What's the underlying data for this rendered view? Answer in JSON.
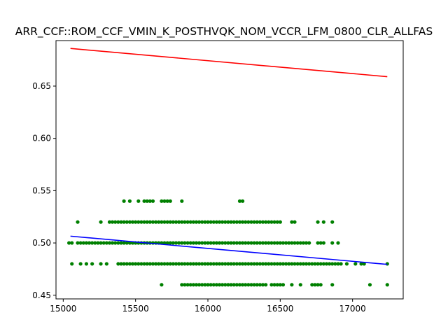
{
  "chart_data": {
    "type": "scatter",
    "title": "ARR_CCF::ROM_CCF_VMIN_K_POSTHVQK_NOM_VCCR_LFM_0800_CLR_ALLFAS",
    "xlabel": "",
    "ylabel": "",
    "xlim": [
      14950,
      17350
    ],
    "ylim": [
      0.4465,
      0.6935
    ],
    "xticks": [
      15000,
      15500,
      16000,
      16500,
      17000
    ],
    "xtick_labels": [
      "15000",
      "15500",
      "16000",
      "16500",
      "17000"
    ],
    "yticks": [
      0.45,
      0.5,
      0.55,
      0.6,
      0.65
    ],
    "ytick_labels": [
      "0.45",
      "0.50",
      "0.55",
      "0.60",
      "0.65"
    ],
    "grid": false,
    "scatter_color": "#008000",
    "points": [
      [
        15420,
        0.54
      ],
      [
        15460,
        0.54
      ],
      [
        15520,
        0.54
      ],
      [
        15560,
        0.54
      ],
      [
        15580,
        0.54
      ],
      [
        15600,
        0.54
      ],
      [
        15620,
        0.54
      ],
      [
        15680,
        0.54
      ],
      [
        15700,
        0.54
      ],
      [
        15720,
        0.54
      ],
      [
        15740,
        0.54
      ],
      [
        15820,
        0.54
      ],
      [
        16220,
        0.54
      ],
      [
        16240,
        0.54
      ],
      [
        15100,
        0.52
      ],
      [
        15260,
        0.52
      ],
      [
        15320,
        0.52
      ],
      [
        15340,
        0.52
      ],
      [
        15360,
        0.52
      ],
      [
        15380,
        0.52
      ],
      [
        15400,
        0.52
      ],
      [
        15420,
        0.52
      ],
      [
        15440,
        0.52
      ],
      [
        15460,
        0.52
      ],
      [
        15480,
        0.52
      ],
      [
        15500,
        0.52
      ],
      [
        15520,
        0.52
      ],
      [
        15540,
        0.52
      ],
      [
        15560,
        0.52
      ],
      [
        15580,
        0.52
      ],
      [
        15600,
        0.52
      ],
      [
        15620,
        0.52
      ],
      [
        15640,
        0.52
      ],
      [
        15660,
        0.52
      ],
      [
        15680,
        0.52
      ],
      [
        15700,
        0.52
      ],
      [
        15720,
        0.52
      ],
      [
        15740,
        0.52
      ],
      [
        15760,
        0.52
      ],
      [
        15780,
        0.52
      ],
      [
        15800,
        0.52
      ],
      [
        15820,
        0.52
      ],
      [
        15840,
        0.52
      ],
      [
        15860,
        0.52
      ],
      [
        15880,
        0.52
      ],
      [
        15900,
        0.52
      ],
      [
        15920,
        0.52
      ],
      [
        15940,
        0.52
      ],
      [
        15960,
        0.52
      ],
      [
        15980,
        0.52
      ],
      [
        16000,
        0.52
      ],
      [
        16020,
        0.52
      ],
      [
        16040,
        0.52
      ],
      [
        16060,
        0.52
      ],
      [
        16080,
        0.52
      ],
      [
        16100,
        0.52
      ],
      [
        16120,
        0.52
      ],
      [
        16140,
        0.52
      ],
      [
        16160,
        0.52
      ],
      [
        16180,
        0.52
      ],
      [
        16200,
        0.52
      ],
      [
        16220,
        0.52
      ],
      [
        16240,
        0.52
      ],
      [
        16260,
        0.52
      ],
      [
        16280,
        0.52
      ],
      [
        16300,
        0.52
      ],
      [
        16320,
        0.52
      ],
      [
        16340,
        0.52
      ],
      [
        16360,
        0.52
      ],
      [
        16380,
        0.52
      ],
      [
        16400,
        0.52
      ],
      [
        16420,
        0.52
      ],
      [
        16440,
        0.52
      ],
      [
        16460,
        0.52
      ],
      [
        16480,
        0.52
      ],
      [
        16500,
        0.52
      ],
      [
        16580,
        0.52
      ],
      [
        16600,
        0.52
      ],
      [
        16760,
        0.52
      ],
      [
        16800,
        0.52
      ],
      [
        16860,
        0.52
      ],
      [
        15040,
        0.5
      ],
      [
        15060,
        0.5
      ],
      [
        15100,
        0.5
      ],
      [
        15120,
        0.5
      ],
      [
        15140,
        0.5
      ],
      [
        15160,
        0.5
      ],
      [
        15180,
        0.5
      ],
      [
        15200,
        0.5
      ],
      [
        15220,
        0.5
      ],
      [
        15240,
        0.5
      ],
      [
        15260,
        0.5
      ],
      [
        15280,
        0.5
      ],
      [
        15300,
        0.5
      ],
      [
        15320,
        0.5
      ],
      [
        15340,
        0.5
      ],
      [
        15360,
        0.5
      ],
      [
        15380,
        0.5
      ],
      [
        15400,
        0.5
      ],
      [
        15420,
        0.5
      ],
      [
        15440,
        0.5
      ],
      [
        15460,
        0.5
      ],
      [
        15480,
        0.5
      ],
      [
        15500,
        0.5
      ],
      [
        15520,
        0.5
      ],
      [
        15540,
        0.5
      ],
      [
        15560,
        0.5
      ],
      [
        15580,
        0.5
      ],
      [
        15600,
        0.5
      ],
      [
        15620,
        0.5
      ],
      [
        15640,
        0.5
      ],
      [
        15660,
        0.5
      ],
      [
        15680,
        0.5
      ],
      [
        15700,
        0.5
      ],
      [
        15720,
        0.5
      ],
      [
        15740,
        0.5
      ],
      [
        15760,
        0.5
      ],
      [
        15780,
        0.5
      ],
      [
        15800,
        0.5
      ],
      [
        15820,
        0.5
      ],
      [
        15840,
        0.5
      ],
      [
        15860,
        0.5
      ],
      [
        15880,
        0.5
      ],
      [
        15900,
        0.5
      ],
      [
        15920,
        0.5
      ],
      [
        15940,
        0.5
      ],
      [
        15960,
        0.5
      ],
      [
        15980,
        0.5
      ],
      [
        16000,
        0.5
      ],
      [
        16020,
        0.5
      ],
      [
        16040,
        0.5
      ],
      [
        16060,
        0.5
      ],
      [
        16080,
        0.5
      ],
      [
        16100,
        0.5
      ],
      [
        16120,
        0.5
      ],
      [
        16140,
        0.5
      ],
      [
        16160,
        0.5
      ],
      [
        16180,
        0.5
      ],
      [
        16200,
        0.5
      ],
      [
        16220,
        0.5
      ],
      [
        16240,
        0.5
      ],
      [
        16260,
        0.5
      ],
      [
        16280,
        0.5
      ],
      [
        16300,
        0.5
      ],
      [
        16320,
        0.5
      ],
      [
        16340,
        0.5
      ],
      [
        16360,
        0.5
      ],
      [
        16380,
        0.5
      ],
      [
        16400,
        0.5
      ],
      [
        16420,
        0.5
      ],
      [
        16440,
        0.5
      ],
      [
        16460,
        0.5
      ],
      [
        16480,
        0.5
      ],
      [
        16500,
        0.5
      ],
      [
        16520,
        0.5
      ],
      [
        16540,
        0.5
      ],
      [
        16560,
        0.5
      ],
      [
        16580,
        0.5
      ],
      [
        16600,
        0.5
      ],
      [
        16620,
        0.5
      ],
      [
        16640,
        0.5
      ],
      [
        16660,
        0.5
      ],
      [
        16680,
        0.5
      ],
      [
        16700,
        0.5
      ],
      [
        16760,
        0.5
      ],
      [
        16780,
        0.5
      ],
      [
        16800,
        0.5
      ],
      [
        16860,
        0.5
      ],
      [
        16900,
        0.5
      ],
      [
        15060,
        0.48
      ],
      [
        15120,
        0.48
      ],
      [
        15160,
        0.48
      ],
      [
        15200,
        0.48
      ],
      [
        15260,
        0.48
      ],
      [
        15300,
        0.48
      ],
      [
        15380,
        0.48
      ],
      [
        15400,
        0.48
      ],
      [
        15420,
        0.48
      ],
      [
        15440,
        0.48
      ],
      [
        15460,
        0.48
      ],
      [
        15480,
        0.48
      ],
      [
        15500,
        0.48
      ],
      [
        15520,
        0.48
      ],
      [
        15540,
        0.48
      ],
      [
        15560,
        0.48
      ],
      [
        15580,
        0.48
      ],
      [
        15600,
        0.48
      ],
      [
        15620,
        0.48
      ],
      [
        15640,
        0.48
      ],
      [
        15660,
        0.48
      ],
      [
        15680,
        0.48
      ],
      [
        15700,
        0.48
      ],
      [
        15720,
        0.48
      ],
      [
        15740,
        0.48
      ],
      [
        15760,
        0.48
      ],
      [
        15780,
        0.48
      ],
      [
        15800,
        0.48
      ],
      [
        15820,
        0.48
      ],
      [
        15840,
        0.48
      ],
      [
        15860,
        0.48
      ],
      [
        15880,
        0.48
      ],
      [
        15900,
        0.48
      ],
      [
        15920,
        0.48
      ],
      [
        15940,
        0.48
      ],
      [
        15960,
        0.48
      ],
      [
        15980,
        0.48
      ],
      [
        16000,
        0.48
      ],
      [
        16020,
        0.48
      ],
      [
        16040,
        0.48
      ],
      [
        16060,
        0.48
      ],
      [
        16080,
        0.48
      ],
      [
        16100,
        0.48
      ],
      [
        16120,
        0.48
      ],
      [
        16140,
        0.48
      ],
      [
        16160,
        0.48
      ],
      [
        16180,
        0.48
      ],
      [
        16200,
        0.48
      ],
      [
        16220,
        0.48
      ],
      [
        16240,
        0.48
      ],
      [
        16260,
        0.48
      ],
      [
        16280,
        0.48
      ],
      [
        16300,
        0.48
      ],
      [
        16320,
        0.48
      ],
      [
        16340,
        0.48
      ],
      [
        16360,
        0.48
      ],
      [
        16380,
        0.48
      ],
      [
        16400,
        0.48
      ],
      [
        16420,
        0.48
      ],
      [
        16440,
        0.48
      ],
      [
        16460,
        0.48
      ],
      [
        16480,
        0.48
      ],
      [
        16500,
        0.48
      ],
      [
        16520,
        0.48
      ],
      [
        16540,
        0.48
      ],
      [
        16560,
        0.48
      ],
      [
        16580,
        0.48
      ],
      [
        16600,
        0.48
      ],
      [
        16620,
        0.48
      ],
      [
        16640,
        0.48
      ],
      [
        16660,
        0.48
      ],
      [
        16680,
        0.48
      ],
      [
        16700,
        0.48
      ],
      [
        16720,
        0.48
      ],
      [
        16740,
        0.48
      ],
      [
        16760,
        0.48
      ],
      [
        16780,
        0.48
      ],
      [
        16800,
        0.48
      ],
      [
        16820,
        0.48
      ],
      [
        16840,
        0.48
      ],
      [
        16860,
        0.48
      ],
      [
        16880,
        0.48
      ],
      [
        16900,
        0.48
      ],
      [
        16920,
        0.48
      ],
      [
        16960,
        0.48
      ],
      [
        17020,
        0.48
      ],
      [
        17060,
        0.48
      ],
      [
        17080,
        0.48
      ],
      [
        17240,
        0.48
      ],
      [
        15680,
        0.46
      ],
      [
        15820,
        0.46
      ],
      [
        15840,
        0.46
      ],
      [
        15860,
        0.46
      ],
      [
        15880,
        0.46
      ],
      [
        15900,
        0.46
      ],
      [
        15920,
        0.46
      ],
      [
        15940,
        0.46
      ],
      [
        15960,
        0.46
      ],
      [
        15980,
        0.46
      ],
      [
        16000,
        0.46
      ],
      [
        16020,
        0.46
      ],
      [
        16040,
        0.46
      ],
      [
        16060,
        0.46
      ],
      [
        16080,
        0.46
      ],
      [
        16100,
        0.46
      ],
      [
        16120,
        0.46
      ],
      [
        16140,
        0.46
      ],
      [
        16160,
        0.46
      ],
      [
        16180,
        0.46
      ],
      [
        16200,
        0.46
      ],
      [
        16220,
        0.46
      ],
      [
        16240,
        0.46
      ],
      [
        16260,
        0.46
      ],
      [
        16280,
        0.46
      ],
      [
        16300,
        0.46
      ],
      [
        16320,
        0.46
      ],
      [
        16340,
        0.46
      ],
      [
        16360,
        0.46
      ],
      [
        16380,
        0.46
      ],
      [
        16400,
        0.46
      ],
      [
        16440,
        0.46
      ],
      [
        16460,
        0.46
      ],
      [
        16480,
        0.46
      ],
      [
        16500,
        0.46
      ],
      [
        16520,
        0.46
      ],
      [
        16580,
        0.46
      ],
      [
        16640,
        0.46
      ],
      [
        16720,
        0.46
      ],
      [
        16740,
        0.46
      ],
      [
        16760,
        0.46
      ],
      [
        16780,
        0.46
      ],
      [
        16860,
        0.46
      ],
      [
        17120,
        0.46
      ],
      [
        17240,
        0.46
      ]
    ],
    "lines": [
      {
        "color": "#ff0000",
        "x": [
          15050,
          17240
        ],
        "y": [
          0.686,
          0.659
        ]
      },
      {
        "color": "#0000ff",
        "x": [
          15050,
          17240
        ],
        "y": [
          0.5065,
          0.4795
        ]
      }
    ]
  }
}
